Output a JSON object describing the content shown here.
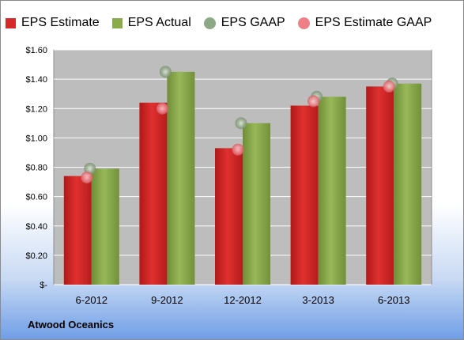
{
  "company_label": "Atwood Oceanics",
  "chart_data": {
    "type": "bar",
    "categories": [
      "6-2012",
      "9-2012",
      "12-2012",
      "3-2013",
      "6-2013"
    ],
    "series": [
      {
        "name": "EPS Estimate",
        "kind": "bar",
        "color": "#d42a2a",
        "values": [
          0.74,
          1.24,
          0.93,
          1.22,
          1.35
        ]
      },
      {
        "name": "EPS Actual",
        "kind": "bar",
        "color": "#8aaa4c",
        "values": [
          0.79,
          1.45,
          1.1,
          1.28,
          1.37
        ]
      },
      {
        "name": "EPS GAAP",
        "kind": "marker",
        "color": "#8ea886",
        "values": [
          0.79,
          1.45,
          1.1,
          1.28,
          1.37
        ]
      },
      {
        "name": "EPS Estimate GAAP",
        "kind": "marker",
        "color": "#ee7f86",
        "values": [
          0.73,
          1.2,
          0.92,
          1.25,
          1.35
        ]
      }
    ],
    "ylim": [
      0,
      1.6
    ],
    "yticks": [
      {
        "value": 0,
        "label": "$-"
      },
      {
        "value": 0.2,
        "label": "$0.20"
      },
      {
        "value": 0.4,
        "label": "$0.40"
      },
      {
        "value": 0.6,
        "label": "$0.60"
      },
      {
        "value": 0.8,
        "label": "$0.80"
      },
      {
        "value": 1.0,
        "label": "$1.00"
      },
      {
        "value": 1.2,
        "label": "$1.20"
      },
      {
        "value": 1.4,
        "label": "$1.40"
      },
      {
        "value": 1.6,
        "label": "$1.60"
      }
    ],
    "grid": true,
    "legend_position": "top",
    "plot_background": "#bdbdbd"
  }
}
